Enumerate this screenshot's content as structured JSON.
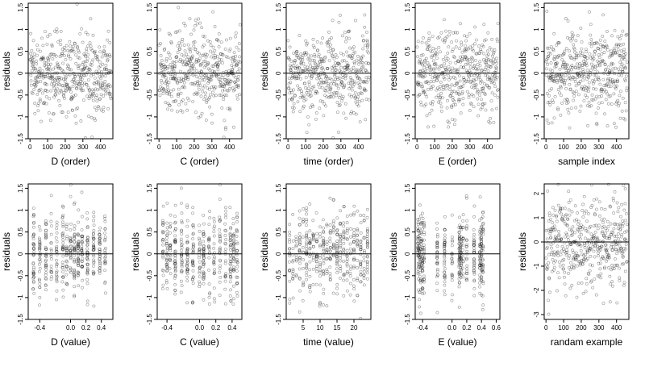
{
  "figure": {
    "layout": "2 rows x 5 columns of residual scatter plots"
  },
  "chart_data": [
    {
      "type": "scatter",
      "xlabel": "D (order)",
      "ylabel": "residuals",
      "xlim": [
        -10,
        470
      ],
      "ylim": [
        -1.5,
        1.6
      ],
      "xticks": [
        0,
        100,
        200,
        300,
        400
      ],
      "yticks": [
        -1.5,
        -1.0,
        -0.5,
        0.0,
        0.5,
        1.0,
        1.5
      ],
      "reference_line": 0,
      "points": {
        "kind": "uniform",
        "n": 460,
        "x_range": [
          1,
          460
        ],
        "y_mean": 0.0,
        "y_sd": 0.48,
        "seed": 1
      }
    },
    {
      "type": "scatter",
      "xlabel": "C (order)",
      "ylabel": "residuals",
      "xlim": [
        -10,
        470
      ],
      "ylim": [
        -1.5,
        1.6
      ],
      "xticks": [
        0,
        100,
        200,
        300,
        400
      ],
      "yticks": [
        -1.5,
        -1.0,
        -0.5,
        0.0,
        0.5,
        1.0,
        1.5
      ],
      "reference_line": 0,
      "points": {
        "kind": "uniform",
        "n": 460,
        "x_range": [
          1,
          460
        ],
        "y_mean": 0.0,
        "y_sd": 0.48,
        "seed": 2
      }
    },
    {
      "type": "scatter",
      "xlabel": "time (order)",
      "ylabel": "residuals",
      "xlim": [
        -10,
        470
      ],
      "ylim": [
        -1.5,
        1.6
      ],
      "xticks": [
        0,
        100,
        200,
        300,
        400
      ],
      "yticks": [
        -1.5,
        -1.0,
        -0.5,
        0.0,
        0.5,
        1.0,
        1.5
      ],
      "reference_line": 0,
      "points": {
        "kind": "uniform",
        "n": 460,
        "x_range": [
          1,
          460
        ],
        "y_mean": 0.0,
        "y_sd": 0.48,
        "seed": 3
      }
    },
    {
      "type": "scatter",
      "xlabel": "E (order)",
      "ylabel": "residuals",
      "xlim": [
        -10,
        470
      ],
      "ylim": [
        -1.5,
        1.6
      ],
      "xticks": [
        0,
        100,
        200,
        300,
        400
      ],
      "yticks": [
        -1.5,
        -1.0,
        -0.5,
        0.0,
        0.5,
        1.0,
        1.5
      ],
      "reference_line": 0,
      "points": {
        "kind": "uniform",
        "n": 460,
        "x_range": [
          1,
          460
        ],
        "y_mean": 0.0,
        "y_sd": 0.48,
        "seed": 4
      }
    },
    {
      "type": "scatter",
      "xlabel": "sample index",
      "ylabel": "residuals",
      "xlim": [
        -10,
        470
      ],
      "ylim": [
        -1.5,
        1.6
      ],
      "xticks": [
        0,
        100,
        200,
        300,
        400
      ],
      "yticks": [
        -1.5,
        -1.0,
        -0.5,
        0.0,
        0.5,
        1.0,
        1.5
      ],
      "reference_line": 0,
      "points": {
        "kind": "uniform",
        "n": 460,
        "x_range": [
          1,
          460
        ],
        "y_mean": 0.0,
        "y_sd": 0.48,
        "seed": 5
      }
    },
    {
      "type": "scatter",
      "xlabel": "D (value)",
      "ylabel": "residuals",
      "xlim": [
        -0.55,
        0.55
      ],
      "ylim": [
        -1.5,
        1.6
      ],
      "xticks": [
        -0.4,
        0.0,
        0.2,
        0.4
      ],
      "xtick_labels": [
        "-0.4",
        "0.0",
        "0.2",
        "0.4"
      ],
      "yticks": [
        -1.5,
        -1.0,
        -0.5,
        0.0,
        0.5,
        1.0,
        1.5
      ],
      "reference_line": 0,
      "points": {
        "kind": "columns",
        "n": 460,
        "x_values": [
          -0.48,
          -0.4,
          -0.32,
          -0.25,
          -0.18,
          -0.1,
          -0.05,
          0.0,
          0.05,
          0.1,
          0.15,
          0.22,
          0.3,
          0.38,
          0.45
        ],
        "jitter": 0.006,
        "y_mean": 0.0,
        "y_sd": 0.48,
        "seed": 6
      }
    },
    {
      "type": "scatter",
      "xlabel": "C (value)",
      "ylabel": "residuals",
      "xlim": [
        -0.52,
        0.52
      ],
      "ylim": [
        -1.5,
        1.6
      ],
      "xticks": [
        -0.4,
        0.0,
        0.2,
        0.4
      ],
      "xtick_labels": [
        "-0.4",
        "0.0",
        "0.2",
        "0.4"
      ],
      "yticks": [
        -1.5,
        -1.0,
        -0.5,
        0.0,
        0.5,
        1.0,
        1.5
      ],
      "reference_line": 0,
      "points": {
        "kind": "columns",
        "n": 460,
        "x_values": [
          -0.45,
          -0.4,
          -0.36,
          -0.3,
          -0.22,
          -0.15,
          -0.08,
          0.0,
          0.05,
          0.12,
          0.18,
          0.25,
          0.32,
          0.38,
          0.42,
          0.46
        ],
        "jitter": 0.006,
        "y_mean": 0.0,
        "y_sd": 0.48,
        "seed": 7
      }
    },
    {
      "type": "scatter",
      "xlabel": "time (value)",
      "ylabel": "residuals",
      "xlim": [
        0,
        25
      ],
      "ylim": [
        -1.5,
        1.6
      ],
      "xticks": [
        5,
        10,
        15,
        20
      ],
      "yticks": [
        -1.5,
        -1.0,
        -0.5,
        0.0,
        0.5,
        1.0,
        1.5
      ],
      "reference_line": 0,
      "points": {
        "kind": "columns",
        "n": 460,
        "x_values": [
          1,
          2,
          3,
          4,
          5,
          6,
          7,
          8,
          9,
          10,
          11,
          12,
          13,
          14,
          15,
          16,
          17,
          18,
          19,
          20,
          21,
          22,
          23,
          24
        ],
        "jitter": 0.08,
        "y_mean": 0.0,
        "y_sd": 0.48,
        "seed": 8
      }
    },
    {
      "type": "scatter",
      "xlabel": "E (value)",
      "ylabel": "residuals",
      "xlim": [
        -0.5,
        0.65
      ],
      "ylim": [
        -1.5,
        1.6
      ],
      "xticks": [
        -0.4,
        0.0,
        0.2,
        0.4,
        0.6
      ],
      "xtick_labels": [
        "-0.4",
        "0.0",
        "0.2",
        "0.4",
        "0.6"
      ],
      "yticks": [
        -1.5,
        -1.0,
        -0.5,
        0.0,
        0.5,
        1.0,
        1.5
      ],
      "reference_line": 0,
      "points": {
        "kind": "columns",
        "n": 460,
        "x_values": [
          -0.46,
          -0.44,
          -0.42,
          -0.4,
          -0.38,
          -0.2,
          -0.1,
          0.0,
          0.1,
          0.12,
          0.15,
          0.2,
          0.3,
          0.38,
          0.4,
          0.42
        ],
        "jitter": 0.005,
        "y_mean": 0.0,
        "y_sd": 0.48,
        "seed": 9
      }
    },
    {
      "type": "scatter",
      "xlabel": "randam example",
      "ylabel": "residuals",
      "xlim": [
        -10,
        470
      ],
      "ylim": [
        -3.2,
        2.4
      ],
      "xticks": [
        0,
        100,
        200,
        300,
        400
      ],
      "yticks": [
        -3,
        -2,
        -1,
        0,
        1,
        2
      ],
      "reference_line": 0,
      "points": {
        "kind": "uniform",
        "n": 460,
        "x_range": [
          1,
          460
        ],
        "y_mean": 0.0,
        "y_sd": 0.95,
        "seed": 10
      }
    }
  ]
}
